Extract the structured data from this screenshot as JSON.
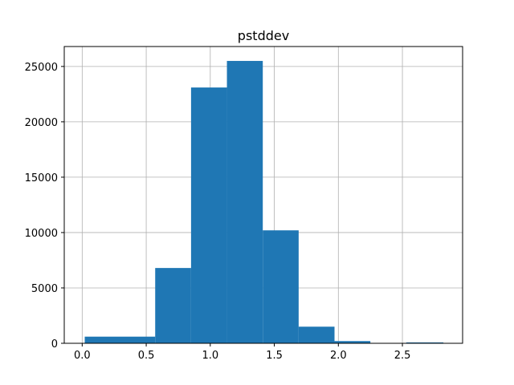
{
  "chart_data": {
    "type": "bar",
    "title": "pstddev",
    "xlabel": "",
    "ylabel": "",
    "xlim": [
      -0.14,
      2.97
    ],
    "ylim": [
      0,
      26800
    ],
    "grid": true,
    "color": "#1f77b4",
    "bins": [
      {
        "x0": 0.02,
        "x1": 0.57,
        "value": 600
      },
      {
        "x0": 0.57,
        "x1": 0.85,
        "value": 6800
      },
      {
        "x0": 0.85,
        "x1": 1.13,
        "value": 23100
      },
      {
        "x0": 1.13,
        "x1": 1.41,
        "value": 25500
      },
      {
        "x0": 1.41,
        "x1": 1.69,
        "value": 10200
      },
      {
        "x0": 1.69,
        "x1": 1.97,
        "value": 1500
      },
      {
        "x0": 1.97,
        "x1": 2.25,
        "value": 200
      },
      {
        "x0": 2.25,
        "x1": 2.53,
        "value": 30
      },
      {
        "x0": 2.53,
        "x1": 2.82,
        "value": 80
      }
    ],
    "x_ticks": [
      {
        "value": 0.0,
        "label": "0.0"
      },
      {
        "value": 0.5,
        "label": "0.5"
      },
      {
        "value": 1.0,
        "label": "1.0"
      },
      {
        "value": 1.5,
        "label": "1.5"
      },
      {
        "value": 2.0,
        "label": "2.0"
      },
      {
        "value": 2.5,
        "label": "2.5"
      }
    ],
    "y_ticks": [
      {
        "value": 0,
        "label": "0"
      },
      {
        "value": 5000,
        "label": "5000"
      },
      {
        "value": 10000,
        "label": "10000"
      },
      {
        "value": 15000,
        "label": "15000"
      },
      {
        "value": 20000,
        "label": "20000"
      },
      {
        "value": 25000,
        "label": "25000"
      }
    ]
  }
}
